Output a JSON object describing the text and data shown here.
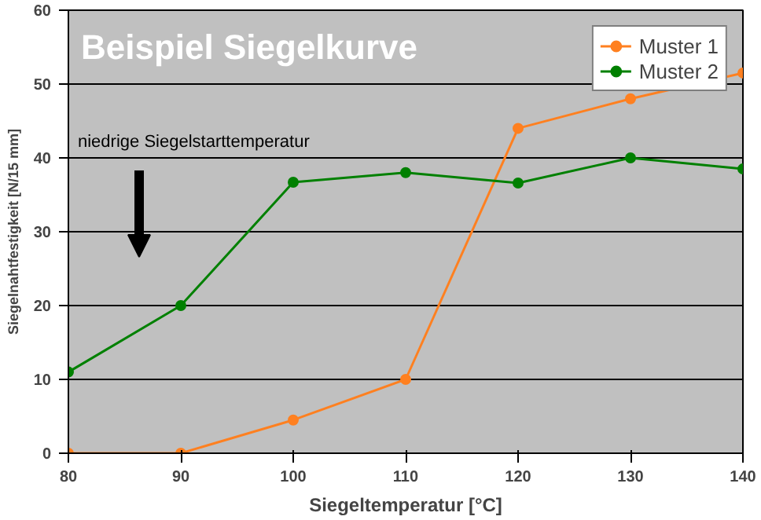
{
  "chart_data": {
    "type": "line",
    "title": "Beispiel Siegelkurve",
    "xlabel": "Siegeltemperatur [°C]",
    "ylabel": "Siegelnahtfestigkeit [N/15 mm]",
    "x": [
      80,
      90,
      100,
      110,
      120,
      130,
      140
    ],
    "series": [
      {
        "name": "Muster 1",
        "color": "#ff8020",
        "values": [
          0,
          0,
          4.5,
          10,
          44,
          48,
          51.5
        ]
      },
      {
        "name": "Muster 2",
        "color": "#008000",
        "values": [
          11,
          20,
          36.7,
          38,
          36.6,
          40,
          38.5
        ]
      }
    ],
    "xlim": [
      80,
      140
    ],
    "xticks": [
      80,
      90,
      100,
      110,
      120,
      130,
      140
    ],
    "ylim": [
      0,
      60
    ],
    "yticks": [
      0,
      10,
      20,
      30,
      40,
      50,
      60
    ],
    "grid": "y",
    "legend": "top right",
    "marker": "circle",
    "line_style": "solid",
    "annotations": [
      "niedrige Siegelstarttemperatur"
    ]
  }
}
